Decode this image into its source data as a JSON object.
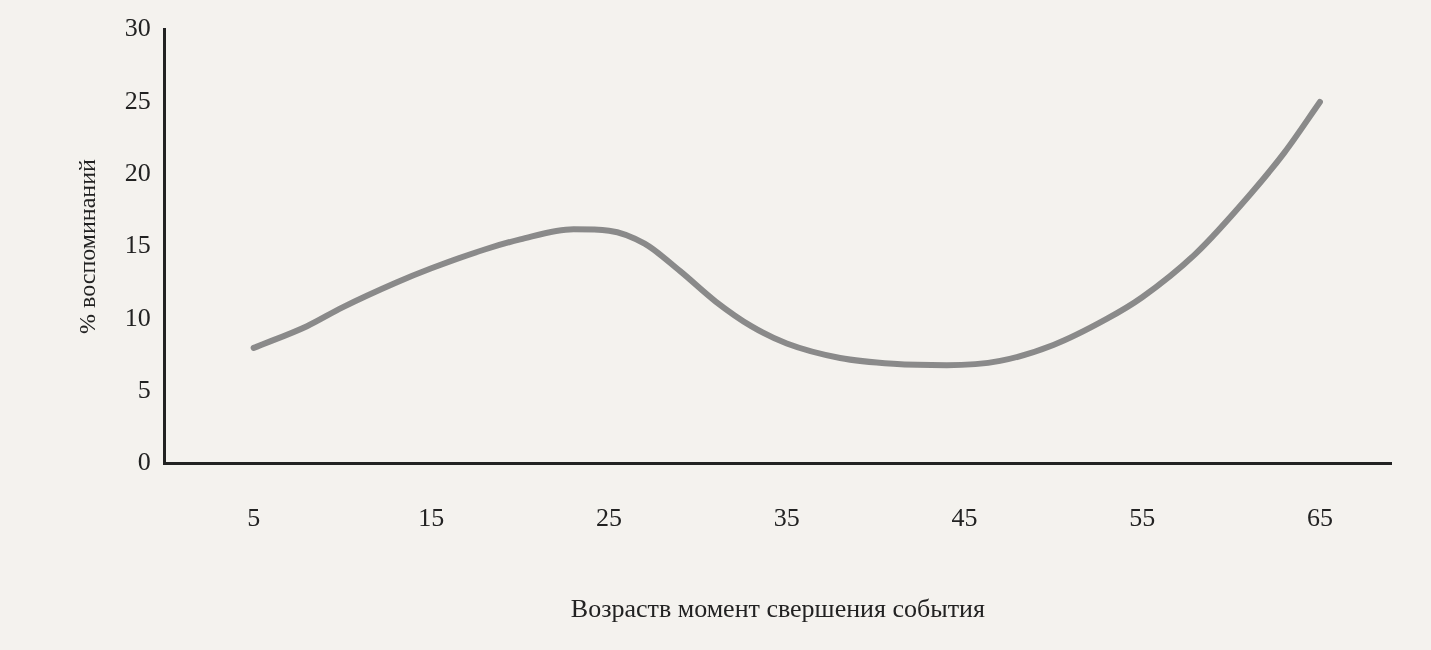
{
  "chart_data": {
    "type": "line",
    "xlabel": "Возраств момент свершения события",
    "ylabel": "% воспоминаний",
    "xlim": [
      0,
      69
    ],
    "xticks": [
      5,
      15,
      25,
      35,
      45,
      55,
      65
    ],
    "ylim": [
      0,
      30
    ],
    "yticks": [
      0,
      5,
      10,
      15,
      20,
      25,
      30
    ],
    "grid": false,
    "legend": false,
    "marker": "none",
    "line_style": "solid",
    "series": [
      {
        "color": "#8a8a8a",
        "x": [
          5,
          8,
          10,
          13,
          15,
          18,
          20,
          23,
          25,
          27,
          29,
          31,
          33,
          35,
          38,
          41,
          44,
          47,
          50,
          53,
          55,
          58,
          61,
          63,
          65
        ],
        "values": [
          8,
          9.5,
          10.8,
          12.5,
          13.5,
          14.8,
          15.5,
          16.2,
          16.1,
          15.2,
          13.3,
          11.2,
          9.5,
          8.3,
          7.3,
          6.9,
          6.8,
          7.1,
          8.2,
          10,
          11.5,
          14.5,
          18.5,
          21.5,
          25
        ]
      }
    ]
  }
}
